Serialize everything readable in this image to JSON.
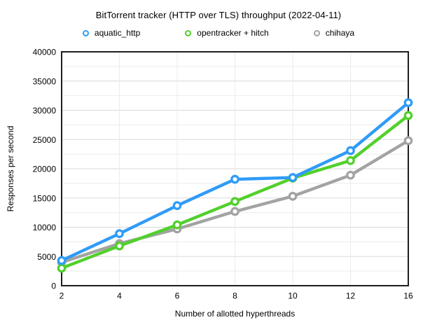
{
  "chart_data": {
    "type": "line",
    "title": "BitTorrent tracker (HTTP over TLS) throughput (2022-04-11)",
    "xlabel": "Number of allotted hyperthreads",
    "ylabel": "Responses per second",
    "categories": [
      2,
      4,
      6,
      8,
      10,
      12,
      16
    ],
    "xticklabels": [
      "2",
      "4",
      "6",
      "8",
      "10",
      "12",
      "16"
    ],
    "ylim": [
      0,
      40000
    ],
    "ytick_step": 5000,
    "y_minor_step": 2500,
    "yticks": [
      0,
      5000,
      10000,
      15000,
      20000,
      25000,
      30000,
      35000,
      40000
    ],
    "yticklabels": [
      "0",
      "5000",
      "10000",
      "15000",
      "20000",
      "25000",
      "30000",
      "35000",
      "40000"
    ],
    "grid": true,
    "legend_position": "top",
    "marker_style": "open-circle",
    "series": [
      {
        "name": "aquatic_http",
        "color": "#2F9BF8",
        "values": [
          4300,
          8900,
          13700,
          18200,
          18500,
          23100,
          31300
        ]
      },
      {
        "name": "opentracker + hitch",
        "color": "#52D02C",
        "values": [
          3000,
          6800,
          10400,
          14400,
          18400,
          21400,
          29100
        ]
      },
      {
        "name": "chihaya",
        "color": "#A3A3A3",
        "values": [
          4000,
          7200,
          9700,
          12700,
          15300,
          18900,
          24800
        ]
      }
    ],
    "colors": {
      "background": "#ffffff",
      "axis": "#1e1e1e",
      "grid_major": "#d9d9d9",
      "grid_minor": "#ebebeb",
      "text": "#000000",
      "marker_fill": "#ffffff"
    }
  }
}
